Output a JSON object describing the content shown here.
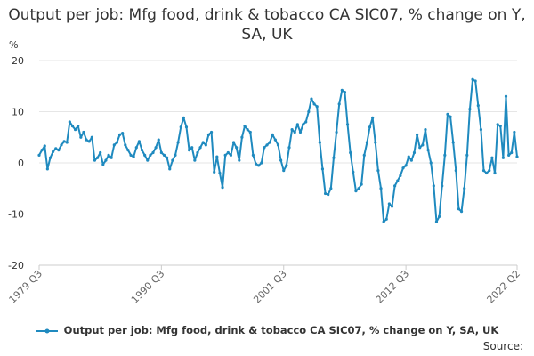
{
  "chart_data": {
    "type": "line",
    "title": "Output per job: Mfg food, drink & tobacco CA SIC07, % change on Y, SA, UK",
    "ylabel": "%",
    "ylim": [
      -20,
      20
    ],
    "yticks": [
      -20,
      -10,
      0,
      10,
      20
    ],
    "xtick_labels": [
      "1979 Q3",
      "1990 Q3",
      "2001 Q3",
      "2012 Q3",
      "2022 Q2"
    ],
    "grid": "horizontal",
    "legend_position": "bottom",
    "series_color": "#1f8abf",
    "series": [
      {
        "name": "Output per job: Mfg food, drink & tobacco CA SIC07, % change on Y, SA, UK",
        "start": "1979 Q3",
        "values": [
          1.5,
          2.5,
          3.3,
          -1.2,
          1.0,
          2.2,
          2.8,
          2.5,
          3.5,
          4.2,
          4.0,
          8.0,
          7.2,
          6.5,
          7.2,
          5.0,
          6.0,
          4.5,
          4.2,
          5.0,
          0.5,
          1.0,
          2.0,
          -0.3,
          0.5,
          1.5,
          1.0,
          3.5,
          4.0,
          5.5,
          5.8,
          3.5,
          2.5,
          1.5,
          1.2,
          3.0,
          4.2,
          2.5,
          1.5,
          0.5,
          1.5,
          2.0,
          3.0,
          4.5,
          2.0,
          1.5,
          1.0,
          -1.2,
          0.5,
          1.5,
          4.0,
          7.0,
          8.8,
          7.0,
          2.5,
          3.0,
          0.5,
          2.0,
          3.0,
          4.0,
          3.5,
          5.5,
          6.0,
          -1.8,
          1.2,
          -2.0,
          -4.8,
          1.5,
          2.0,
          1.5,
          4.0,
          3.0,
          0.5,
          5.0,
          7.2,
          6.5,
          6.0,
          1.5,
          -0.2,
          -0.5,
          0.0,
          3.0,
          3.5,
          4.0,
          5.5,
          4.5,
          3.5,
          0.5,
          -1.5,
          -0.5,
          3.0,
          6.5,
          6.0,
          7.5,
          6.0,
          7.5,
          8.0,
          10.0,
          12.5,
          11.5,
          11.0,
          4.0,
          -1.2,
          -6.0,
          -6.2,
          -5.0,
          1.0,
          6.0,
          11.5,
          14.2,
          13.8,
          7.5,
          2.0,
          -1.8,
          -5.5,
          -5.0,
          -4.2,
          1.5,
          4.0,
          7.0,
          8.8,
          4.0,
          -1.5,
          -5.0,
          -11.5,
          -11.0,
          -8.0,
          -8.5,
          -4.5,
          -3.5,
          -2.5,
          -1.0,
          -0.5,
          1.2,
          0.5,
          2.0,
          5.5,
          3.0,
          3.5,
          6.5,
          2.5,
          0.0,
          -4.5,
          -11.5,
          -10.5,
          -4.5,
          1.5,
          9.5,
          9.0,
          4.0,
          -1.5,
          -9.0,
          -9.5,
          -5.0,
          1.5,
          10.5,
          16.3,
          16.0,
          11.2,
          6.5,
          -1.5,
          -2.0,
          -1.5,
          1.0,
          -2.0,
          7.5,
          7.2,
          1.0,
          13.0,
          1.5,
          2.0,
          6.0,
          1.2
        ]
      }
    ]
  },
  "source_label": "Source:"
}
